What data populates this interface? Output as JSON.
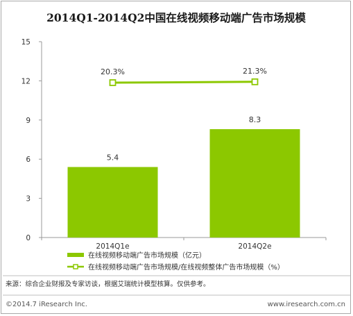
{
  "title": "2014Q1-2014Q2中国在线视频移动端广告市场规模",
  "chart_data": {
    "type": "bar",
    "categories": [
      "2014Q1e",
      "2014Q2e"
    ],
    "series": [
      {
        "name": "在线视频移动端广告市场规模（亿元）",
        "type": "bar",
        "axis": "left",
        "values": [
          5.4,
          8.3
        ],
        "labels": [
          "5.4",
          "8.3"
        ],
        "color": "#8cc800"
      },
      {
        "name": "在线视频移动端广告市场规模/在线视频整体广告市场规模（%）",
        "type": "line",
        "axis": "left-scaled",
        "values": [
          20.3,
          21.3
        ],
        "labels": [
          "20.3%",
          "21.3%"
        ],
        "color": "#8cc800"
      }
    ],
    "yticks": [
      "0",
      "3",
      "6",
      "9",
      "12",
      "15"
    ],
    "ylim": [
      0,
      15
    ],
    "grid": false,
    "legend_position": "bottom"
  },
  "source": "来源：综合企业财报及专家访谈，根据艾瑞统计模型核算。仅供参考。",
  "footer": {
    "copyright": "©2014.7 iResearch Inc.",
    "website": "www.iresearch.com.cn"
  }
}
